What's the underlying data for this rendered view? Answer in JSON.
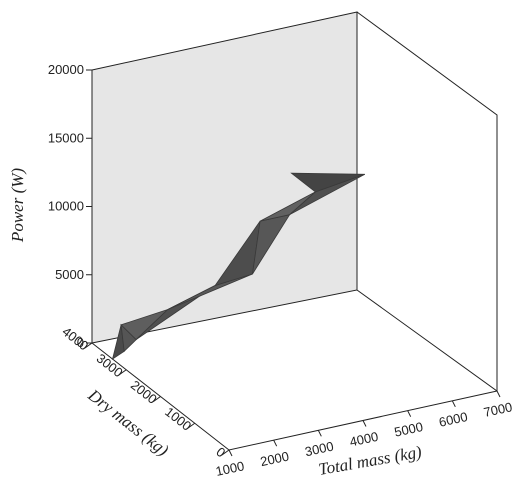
{
  "chart_data": {
    "type": "surface3d",
    "title": "",
    "xlabel": "Total mass (kg)",
    "ylabel": "Dry mass (kg)",
    "zlabel": "Power (W)",
    "x_ticks": [
      "1000",
      "2000",
      "3000",
      "4000",
      "5000",
      "6000",
      "7000"
    ],
    "y_ticks": [
      "0",
      "1000",
      "2000",
      "3000",
      "4000"
    ],
    "z_ticks": [
      "0",
      "5000",
      "10000",
      "15000",
      "20000"
    ],
    "xlim": [
      1000,
      7000
    ],
    "ylim": [
      0,
      4000
    ],
    "zlim": [
      0,
      20000
    ],
    "grid": false,
    "back_wall_color": "#e6e6e6",
    "surface_color": "#555555",
    "surface_edge_color": "#3a3a3a",
    "series": [
      {
        "values": [
          {
            "x": 1000,
            "y": 3400,
            "z": 0
          },
          {
            "x": 1300,
            "y": 3450,
            "z": 250
          },
          {
            "x": 1000,
            "y": 3150,
            "z": 3000
          },
          {
            "x": 1300,
            "y": 3100,
            "z": 1800
          },
          {
            "x": 1700,
            "y": 2700,
            "z": 4500
          },
          {
            "x": 2300,
            "y": 2100,
            "z": 7000
          },
          {
            "x": 2600,
            "y": 1400,
            "z": 9000
          },
          {
            "x": 3000,
            "y": 1700,
            "z": 12000
          },
          {
            "x": 3200,
            "y": 1100,
            "z": 13500
          },
          {
            "x": 3700,
            "y": 1000,
            "z": 15000
          },
          {
            "x": 4500,
            "y": 600,
            "z": 16500
          }
        ]
      }
    ]
  }
}
